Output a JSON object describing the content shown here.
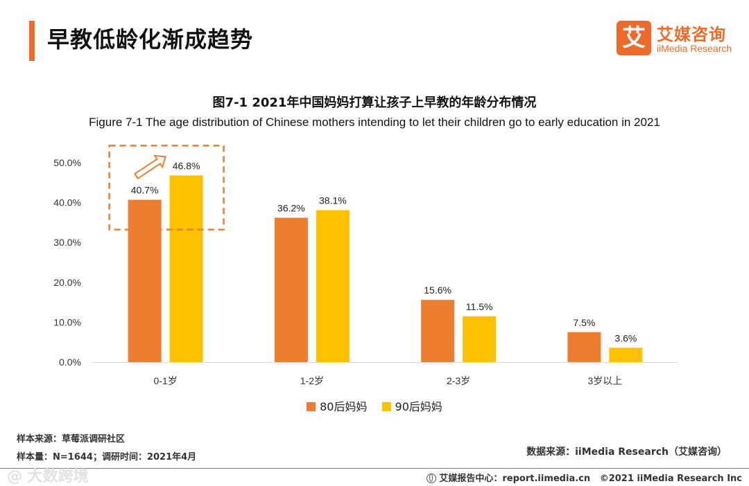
{
  "header": {
    "title": "早教低龄化渐成趋势",
    "logo_mark": "艾",
    "logo_cn": "艾媒咨询",
    "logo_en": "iiMedia Research"
  },
  "chart_data": {
    "type": "bar",
    "title": "图7-1 2021年中国妈妈打算让孩子上早教的年龄分布情况",
    "subtitle": "Figure 7-1 The age distribution of Chinese mothers intending to let their children go to early education in 2021",
    "categories": [
      "0-1岁",
      "1-2岁",
      "2-3岁",
      "3岁以上"
    ],
    "series": [
      {
        "name": "80后妈妈",
        "color": "#ed7d31",
        "values": [
          40.7,
          36.2,
          15.6,
          7.5
        ],
        "labels": [
          "40.7%",
          "36.2%",
          "15.6%",
          "7.5%"
        ]
      },
      {
        "name": "90后妈妈",
        "color": "#ffc000",
        "values": [
          46.8,
          38.1,
          11.5,
          3.6
        ],
        "labels": [
          "46.8%",
          "38.1%",
          "11.5%",
          "3.6%"
        ]
      }
    ],
    "yticks": [
      "0.0%",
      "10.0%",
      "20.0%",
      "30.0%",
      "40.0%",
      "50.0%"
    ],
    "ylim": [
      0,
      50
    ],
    "grid": false,
    "legend_position": "bottom",
    "highlight": {
      "category": "0-1岁",
      "style": "dashed box with upward arrow",
      "color": "#ed7d31"
    }
  },
  "footer": {
    "sample_source": "样本来源：草莓派调研社区",
    "sample_size": "样本量：N=1644；调研时间：2021年4月",
    "data_source": "数据来源：iiMedia Research（艾媒咨询）",
    "report_center": "艾媒报告中心：report.iimedia.cn",
    "copyright": "©2021  iiMedia Research  Inc",
    "watermark": "@ 大数跨境"
  }
}
